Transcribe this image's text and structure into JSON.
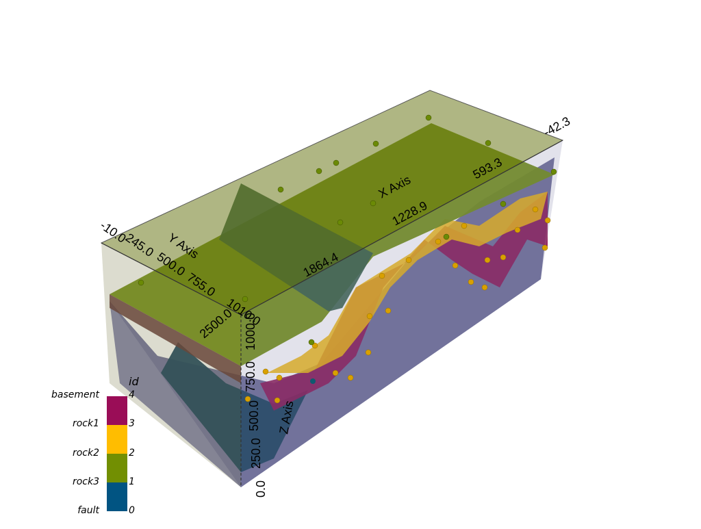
{
  "viewer": {
    "x_axis_title": "X Axis",
    "y_axis_title": "Y Axis",
    "z_axis_title": "Z Axis",
    "x_ticks": [
      "593.3",
      "1228.9",
      "1864.4",
      "2500.0"
    ],
    "y_ticks": [
      "-10.0",
      "245.0",
      "500.0",
      "755.0",
      "1010.0"
    ],
    "z_ticks": [
      "0.0",
      "250.0",
      "500.0",
      "750.0",
      "1000.0"
    ],
    "corner_label": "-42.3"
  },
  "legend": {
    "title": "id",
    "items": [
      {
        "name": "basement",
        "value": "4",
        "color": "#9a0d57"
      },
      {
        "name": "rock1",
        "value": "3",
        "color": "#ffbd00"
      },
      {
        "name": "rock2",
        "value": "2",
        "color": "#728f02"
      },
      {
        "name": "rock3",
        "value": "1",
        "color": "#015482"
      },
      {
        "name": "fault",
        "value": "0",
        "color": "#015482"
      }
    ],
    "swatch_colors": [
      "#9a0d57",
      "#ffbd00",
      "#728f02",
      "#015482"
    ]
  }
}
